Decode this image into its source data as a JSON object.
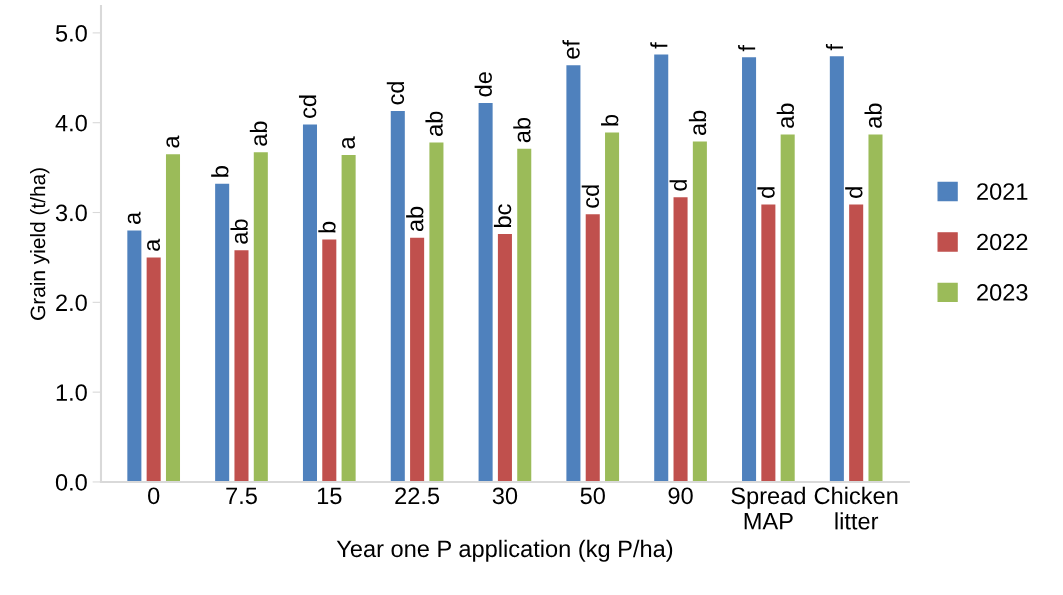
{
  "chart_data": {
    "type": "bar",
    "xlabel": "Year one P application (kg P/ha)",
    "ylabel": "Grain yield (t/ha)",
    "categories": [
      "0",
      "7.5",
      "15",
      "22.5",
      "30",
      "50",
      "90",
      "Spread\nMAP",
      "Chicken\nlitter"
    ],
    "series": [
      {
        "name": "2021",
        "color": "#4f81bd",
        "values": [
          2.8,
          3.32,
          3.98,
          4.13,
          4.22,
          4.64,
          4.76,
          4.73,
          4.74
        ],
        "value_labels": [
          "a",
          "b",
          "cd",
          "cd",
          "de",
          "ef",
          "f",
          "f",
          "f"
        ]
      },
      {
        "name": "2022",
        "color": "#c0504d",
        "values": [
          2.5,
          2.58,
          2.7,
          2.72,
          2.76,
          2.98,
          3.17,
          3.09,
          3.09
        ],
        "value_labels": [
          "a",
          "ab",
          "b",
          "ab",
          "bc",
          "cd",
          "d",
          "d",
          "d"
        ]
      },
      {
        "name": "2023",
        "color": "#9bbb59",
        "values": [
          3.65,
          3.67,
          3.64,
          3.78,
          3.71,
          3.89,
          3.79,
          3.87,
          3.87
        ],
        "value_labels": [
          "a",
          "ab",
          "a",
          "ab",
          "ab",
          "b",
          "ab",
          "ab",
          "ab"
        ]
      }
    ],
    "ylim": [
      0,
      5.3
    ],
    "yticks": [
      {
        "value": 0,
        "label": "0.0"
      },
      {
        "value": 1,
        "label": "1.0"
      },
      {
        "value": 2,
        "label": "2.0"
      },
      {
        "value": 3,
        "label": "3.0"
      },
      {
        "value": 4,
        "label": "4.0"
      },
      {
        "value": 5,
        "label": "5.0"
      }
    ],
    "grid": false,
    "legend": "right"
  }
}
